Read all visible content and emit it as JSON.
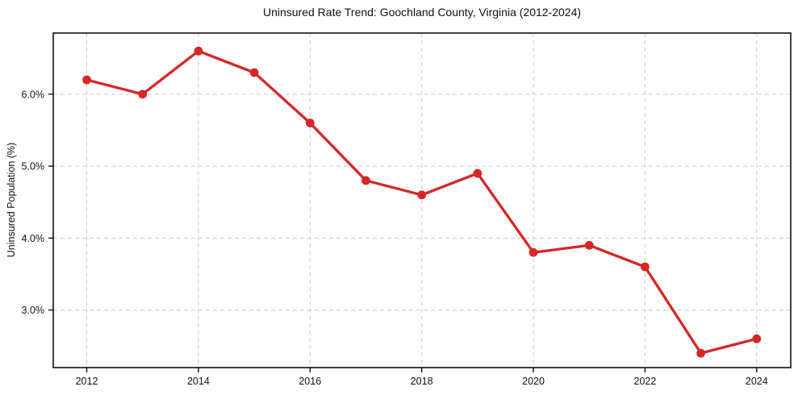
{
  "chart_data": {
    "type": "line",
    "title": "Uninsured Rate Trend: Goochland County, Virginia (2012-2024)",
    "xlabel": "",
    "ylabel": "Uninsured Population (%)",
    "x": [
      2012,
      2013,
      2014,
      2015,
      2016,
      2017,
      2018,
      2019,
      2020,
      2021,
      2022,
      2023,
      2024
    ],
    "values": [
      6.2,
      6.0,
      6.6,
      6.3,
      5.6,
      4.8,
      4.6,
      4.9,
      3.8,
      3.9,
      3.6,
      2.4,
      2.6
    ],
    "xlim": [
      2011.4,
      2024.61
    ],
    "ylim": [
      2.2,
      6.85
    ],
    "x_ticks": [
      2012,
      2014,
      2016,
      2018,
      2020,
      2022,
      2024
    ],
    "x_tick_labels": [
      "2012",
      "2014",
      "2016",
      "2018",
      "2020",
      "2022",
      "2024"
    ],
    "y_ticks": [
      3.0,
      4.0,
      5.0,
      6.0
    ],
    "y_tick_labels": [
      "3.0%",
      "4.0%",
      "5.0%",
      "6.0%"
    ],
    "grid": true,
    "grid_style": "dashed",
    "legend": "none",
    "marker": "circle",
    "colors": {
      "line": "#d62728",
      "marker": "#d62728",
      "grid": "#cccccc",
      "spine": "#000000",
      "tick_text": "#111111",
      "background": "#ffffff"
    }
  }
}
